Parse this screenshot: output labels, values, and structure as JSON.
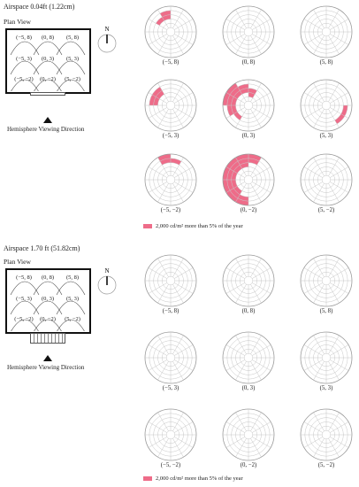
{
  "colors": {
    "highlight": "#ee6c89",
    "grid": "#c6c6c6"
  },
  "sections": [
    {
      "title": "Airspace 0.04ft (1.22cm)",
      "plan_view": "Plan View",
      "compass": "N",
      "hemisphere_label": "Hemisphere Viewing Direction",
      "plan_points": [
        "(−5, 8)",
        "(0, 8)",
        "(5, 8)",
        "(−5, 3)",
        "(0, 3)",
        "(5, 3)",
        "(−5, −2)",
        "(0, −2)",
        "(5, −2)"
      ],
      "window_treatment": "window",
      "cells": [
        {
          "label": "(−5, 8)",
          "highlight": [
            [
              8,
              3
            ],
            [
              7,
              3
            ],
            [
              8,
              4
            ]
          ]
        },
        {
          "label": "(0, 8)",
          "highlight": []
        },
        {
          "label": "(5, 8)",
          "highlight": []
        },
        {
          "label": "(−5, 3)",
          "highlight": [
            [
              6,
              4
            ],
            [
              6,
              3
            ],
            [
              7,
              4
            ],
            [
              7,
              3
            ]
          ]
        },
        {
          "label": "(0, 3)",
          "highlight": [
            [
              4,
              3
            ],
            [
              5,
              3
            ],
            [
              6,
              3
            ],
            [
              7,
              3
            ],
            [
              8,
              3
            ],
            [
              9,
              3
            ],
            [
              5,
              4
            ],
            [
              6,
              4
            ],
            [
              7,
              4
            ],
            [
              8,
              4
            ],
            [
              6,
              5
            ],
            [
              7,
              5
            ],
            [
              9,
              2
            ]
          ]
        },
        {
          "label": "(5, 3)",
          "highlight": [
            [
              0,
              4
            ],
            [
              1,
              4
            ]
          ]
        },
        {
          "label": "(−5, −2)",
          "highlight": [
            [
              8,
              4
            ],
            [
              9,
              4
            ],
            [
              8,
              5
            ]
          ]
        },
        {
          "label": "(0, −2)",
          "highlight": [
            [
              3,
              4
            ],
            [
              4,
              4
            ],
            [
              5,
              4
            ],
            [
              6,
              4
            ],
            [
              7,
              4
            ],
            [
              8,
              4
            ],
            [
              9,
              4
            ],
            [
              3,
              5
            ],
            [
              4,
              5
            ],
            [
              5,
              5
            ],
            [
              6,
              5
            ],
            [
              7,
              5
            ],
            [
              8,
              5
            ],
            [
              9,
              5
            ],
            [
              4,
              3
            ],
            [
              5,
              3
            ],
            [
              6,
              3
            ],
            [
              7,
              3
            ],
            [
              8,
              3
            ]
          ]
        },
        {
          "label": "(5, −2)",
          "highlight": []
        }
      ],
      "legend": "2,000 cd/m² more than 5% of the year"
    },
    {
      "title": "Airspace 1.70 ft (51.82cm)",
      "plan_view": "Plan View",
      "compass": "N",
      "hemisphere_label": "Hemisphere Viewing Direction",
      "plan_points": [
        "(−5, 8)",
        "(0, 8)",
        "(5, 8)",
        "(−5, 3)",
        "(0, 3)",
        "(5, 3)",
        "(−5, −2)",
        "(0, −2)",
        "(5, −2)"
      ],
      "window_treatment": "shade",
      "cells": [
        {
          "label": "(−5, 8)",
          "highlight": []
        },
        {
          "label": "(0, 8)",
          "highlight": []
        },
        {
          "label": "(5, 8)",
          "highlight": []
        },
        {
          "label": "(−5, 3)",
          "highlight": []
        },
        {
          "label": "(0, 3)",
          "highlight": []
        },
        {
          "label": "(5, 3)",
          "highlight": []
        },
        {
          "label": "(−5, −2)",
          "highlight": []
        },
        {
          "label": "(0, −2)",
          "highlight": []
        },
        {
          "label": "(5, −2)",
          "highlight": []
        }
      ],
      "legend": "2,000 cd/m² more than 5% of the year"
    }
  ]
}
